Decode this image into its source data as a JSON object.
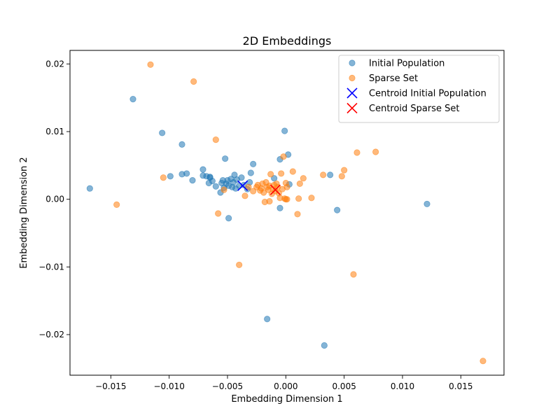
{
  "chart_data": {
    "type": "scatter",
    "title": "2D Embeddings",
    "xlabel": "Embedding Dimension 1",
    "ylabel": "Embedding Dimension 2",
    "xlim": [
      -0.0185,
      0.0187
    ],
    "ylim": [
      -0.026,
      0.022
    ],
    "xticks": [
      -0.015,
      -0.01,
      -0.005,
      0.0,
      0.005,
      0.01,
      0.015
    ],
    "xtick_labels": [
      "−0.015",
      "−0.010",
      "−0.005",
      "0.000",
      "0.005",
      "0.010",
      "0.015"
    ],
    "yticks": [
      -0.02,
      -0.01,
      0.0,
      0.01,
      0.02
    ],
    "ytick_labels": [
      "−0.02",
      "−0.01",
      "0.00",
      "0.01",
      "0.02"
    ],
    "grid": false,
    "legend_position": "top-right",
    "series": [
      {
        "name": "Initial Population",
        "kind": "scatter",
        "color": "#1f77b4",
        "points": [
          [
            -0.0168,
            0.0016
          ],
          [
            -0.0131,
            0.0148
          ],
          [
            -0.0106,
            0.0098
          ],
          [
            -0.0099,
            0.0034
          ],
          [
            -0.0089,
            0.0081
          ],
          [
            -0.0089,
            0.0037
          ],
          [
            -0.0085,
            0.0038
          ],
          [
            -0.008,
            0.0028
          ],
          [
            -0.0071,
            0.0044
          ],
          [
            -0.0071,
            0.0035
          ],
          [
            -0.0068,
            0.0034
          ],
          [
            -0.0066,
            0.0024
          ],
          [
            -0.0065,
            0.0033
          ],
          [
            -0.0065,
            0.0032
          ],
          [
            -0.0063,
            0.0027
          ],
          [
            -0.006,
            0.0019
          ],
          [
            -0.0056,
            0.001
          ],
          [
            -0.0055,
            0.0024
          ],
          [
            -0.0054,
            0.0028
          ],
          [
            -0.0053,
            0.0017
          ],
          [
            -0.0052,
            0.006
          ],
          [
            -0.0051,
            0.0023
          ],
          [
            -0.005,
            0.0028
          ],
          [
            -0.0049,
            0.002
          ],
          [
            -0.0049,
            -0.0028
          ],
          [
            -0.0047,
            0.003
          ],
          [
            -0.0046,
            0.0018
          ],
          [
            -0.0045,
            0.0025
          ],
          [
            -0.0044,
            0.0036
          ],
          [
            -0.0043,
            0.0016
          ],
          [
            -0.0042,
            0.0029
          ],
          [
            -0.004,
            0.002
          ],
          [
            -0.0038,
            0.0032
          ],
          [
            -0.0036,
            0.0021
          ],
          [
            -0.0033,
            0.0015
          ],
          [
            -0.0031,
            0.0025
          ],
          [
            -0.003,
            0.0039
          ],
          [
            -0.0028,
            0.0052
          ],
          [
            -0.0016,
            -0.0177
          ],
          [
            -0.001,
            0.0031
          ],
          [
            -0.0005,
            0.0059
          ],
          [
            -0.0005,
            -0.0013
          ],
          [
            -0.0001,
            0.0101
          ],
          [
            0.0002,
            0.0066
          ],
          [
            0.0003,
            0.0022
          ],
          [
            0.0033,
            -0.0216
          ],
          [
            0.0038,
            0.0036
          ],
          [
            0.0044,
            -0.0016
          ],
          [
            0.0121,
            -0.0007
          ]
        ]
      },
      {
        "name": "Sparse Set",
        "kind": "scatter",
        "color": "#ff7f0e",
        "points": [
          [
            -0.0145,
            -0.0008
          ],
          [
            -0.0116,
            0.0199
          ],
          [
            -0.0105,
            0.0032
          ],
          [
            -0.0079,
            0.0174
          ],
          [
            -0.006,
            0.0088
          ],
          [
            -0.0058,
            -0.0021
          ],
          [
            -0.0053,
            0.0014
          ],
          [
            -0.004,
            -0.0097
          ],
          [
            -0.0035,
            0.0005
          ],
          [
            -0.0032,
            0.0018
          ],
          [
            -0.0028,
            0.0012
          ],
          [
            -0.0025,
            0.0018
          ],
          [
            -0.0024,
            0.0021
          ],
          [
            -0.0022,
            0.0013
          ],
          [
            -0.0021,
            0.0016
          ],
          [
            -0.002,
            0.0023
          ],
          [
            -0.0019,
            0.001
          ],
          [
            -0.0018,
            -0.0004
          ],
          [
            -0.0017,
            0.0025
          ],
          [
            -0.0016,
            0.0018
          ],
          [
            -0.0015,
            0.0014
          ],
          [
            -0.0014,
            0.002
          ],
          [
            -0.0014,
            -0.0003
          ],
          [
            -0.0013,
            0.0037
          ],
          [
            -0.0012,
            0.0008
          ],
          [
            -0.0011,
            0.0015
          ],
          [
            -0.001,
            0.0021
          ],
          [
            -0.0009,
            0.0012
          ],
          [
            -0.0008,
            0.0023
          ],
          [
            -0.0007,
            0.0018
          ],
          [
            -0.0006,
            0.0009
          ],
          [
            -0.0005,
            0.0002
          ],
          [
            -0.0004,
            0.0038
          ],
          [
            -0.0003,
            0.0015
          ],
          [
            -0.0002,
            0.0063
          ],
          [
            -0.0001,
            0.0001
          ],
          [
            0.0,
            0.0024
          ],
          [
            0.0,
            0.0
          ],
          [
            0.0001,
            0.0
          ],
          [
            0.0001,
            0.0018
          ],
          [
            0.0006,
            0.0041
          ],
          [
            0.001,
            -0.0022
          ],
          [
            0.0011,
            0.0001
          ],
          [
            0.0012,
            0.0023
          ],
          [
            0.0015,
            0.0031
          ],
          [
            0.0022,
            0.0002
          ],
          [
            0.0032,
            0.0036
          ],
          [
            0.0048,
            0.0034
          ],
          [
            0.005,
            0.0043
          ],
          [
            0.0058,
            -0.0111
          ],
          [
            0.0061,
            0.0069
          ],
          [
            0.0077,
            0.007
          ],
          [
            0.0169,
            -0.0239
          ]
        ]
      },
      {
        "name": "Centroid Initial Population",
        "kind": "marker-x",
        "color": "#0000ff",
        "points": [
          [
            -0.0037,
            0.002
          ]
        ]
      },
      {
        "name": "Centroid Sparse Set",
        "kind": "marker-x",
        "color": "#ff0000",
        "points": [
          [
            -0.0009,
            0.0014
          ]
        ]
      }
    ]
  }
}
